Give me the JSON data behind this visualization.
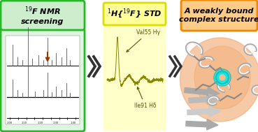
{
  "title1": "$^{19}$F NMR\nscreening",
  "title2": "$^{1}$H{$^{19}$F} STD",
  "title3": "A weakly bound\ncomplex structure",
  "box1_edge": "#22bb22",
  "box1_fill_top": "#cceecc",
  "box1_fill_bot": "#ddf5dd",
  "box2_edge": "#dddd00",
  "box2_fill": "#ffff99",
  "box3_edge": "#ee8800",
  "box3_fill": "#ffcc88",
  "label1": "Val55 Hγ",
  "label2": "Ile91 Hδ",
  "background": "#ffffff",
  "chevron_color": "#333333",
  "arrow_brown": "#993300",
  "spectrum_color": "#555555",
  "std_color": "#888800",
  "glow_color": "#f0a060",
  "ribbon_color": "#aaaaaa",
  "ribbon_dark": "#888888",
  "cyan1": "#00cccc",
  "cyan2": "#00eeee"
}
